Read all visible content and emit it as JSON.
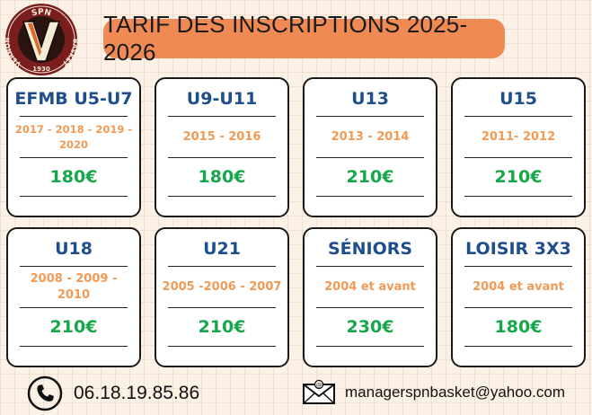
{
  "logo": {
    "top_text": "SPN",
    "left_text": "VERNON",
    "right_text": "BASKET",
    "year": "1930",
    "letter": "V"
  },
  "title": "TARIF DES INSCRIPTIONS 2025-2026",
  "cards": [
    {
      "name": "EFMB U5-U7",
      "years": "2017 - 2018 - 2019 - 2020",
      "price": "180€"
    },
    {
      "name": "U9-U11",
      "years": "2015 - 2016",
      "price": "180€"
    },
    {
      "name": "U13",
      "years": "2013 - 2014",
      "price": "210€"
    },
    {
      "name": "U15",
      "years": "2011- 2012",
      "price": "210€"
    },
    {
      "name": "U18",
      "years": "2008 - 2009 - 2010",
      "price": "210€"
    },
    {
      "name": "U21",
      "years": "2005 -2006 - 2007",
      "price": "210€"
    },
    {
      "name": "SÉNIORS",
      "years": "2004 et avant",
      "price": "230€"
    },
    {
      "name": "LOISIR 3X3",
      "years": "2004 et avant",
      "price": "180€"
    }
  ],
  "contact": {
    "phone": "06.18.19.85.86",
    "email": "managerspnbasket@yahoo.com"
  }
}
